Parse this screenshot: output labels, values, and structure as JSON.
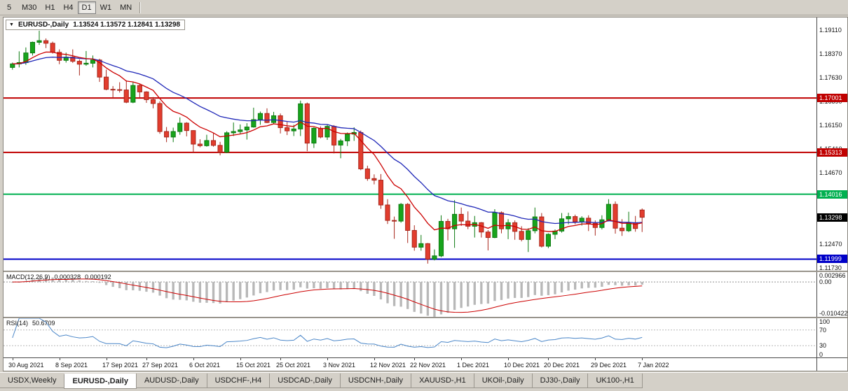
{
  "toolbar": {
    "timeframes": [
      {
        "label": "5",
        "active": false
      },
      {
        "label": "M30",
        "active": false
      },
      {
        "label": "H1",
        "active": false
      },
      {
        "label": "H4",
        "active": false
      },
      {
        "label": "D1",
        "active": true
      },
      {
        "label": "W1",
        "active": false
      },
      {
        "label": "MN",
        "active": false
      }
    ]
  },
  "chart": {
    "symbol_period": "EURUSD-,Daily",
    "ohlc_text": "1.13524 1.13572 1.12841 1.13298"
  },
  "chart_data": {
    "type": "candlestick",
    "symbol": "EURUSD-",
    "timeframe": "Daily",
    "colors": {
      "up": "#18a41c",
      "up_border": "#0c7a10",
      "down": "#e23d2e",
      "down_border": "#a8271c",
      "histogram": "#b8b8b8",
      "macd_signal": "#cc0000",
      "rsi_line": "#4a86c8",
      "level_dotted": "#b8b8b8",
      "zero_dotted": "#909090"
    },
    "price_axis": {
      "max": 1.195,
      "min": 1.1164,
      "labels": [
        "1.19110",
        "1.18370",
        "1.17630",
        "1.16890",
        "1.16150",
        "1.15410",
        "1.14670",
        "1.12470",
        "1.11730"
      ]
    },
    "hlines": [
      {
        "value": 1.17001,
        "label": "1.17001",
        "color": "#c00000"
      },
      {
        "value": 1.15313,
        "label": "1.15313",
        "color": "#c00000"
      },
      {
        "value": 1.14016,
        "label": "1.14016",
        "color": "#00b050"
      },
      {
        "value": 1.11999,
        "label": "1.11999",
        "color": "#0000c8"
      }
    ],
    "last_price": {
      "value": 1.13298,
      "label": "1.13298",
      "color": "#000000"
    },
    "ma": [
      {
        "type": "ema",
        "period": 21,
        "color": "#2028b8"
      },
      {
        "type": "ema",
        "period": 9,
        "color": "#cc0000"
      }
    ],
    "macd": {
      "label": "MACD(12,26,9)",
      "value_main": "0.000328",
      "value_signal": "0.000192",
      "fast": 12,
      "slow": 26,
      "signal_period": 9,
      "axis": {
        "max": 0.002966,
        "min": -0.010422,
        "labels": [
          {
            "text": "0.002966",
            "value": 0.002966
          },
          {
            "text": "0.00",
            "value": 0
          },
          {
            "text": "-0.010422",
            "value": -0.010422
          }
        ]
      }
    },
    "rsi": {
      "label": "RSI(14)",
      "value": "50.6709",
      "period": 14,
      "levels": [
        70,
        30
      ],
      "axis": {
        "max": 100,
        "min": 0,
        "labels": [
          {
            "text": "100",
            "value": 100
          },
          {
            "text": "70",
            "value": 70
          },
          {
            "text": "30",
            "value": 30
          },
          {
            "text": "0",
            "value": 0
          }
        ]
      }
    },
    "date_ticks": [
      {
        "i": 0,
        "label": "30 Aug 2021"
      },
      {
        "i": 7,
        "label": "8 Sep 2021"
      },
      {
        "i": 14,
        "label": "17 Sep 2021"
      },
      {
        "i": 20,
        "label": "27 Sep 2021"
      },
      {
        "i": 27,
        "label": "6 Oct 2021"
      },
      {
        "i": 34,
        "label": "15 Oct 2021"
      },
      {
        "i": 40,
        "label": "25 Oct 2021"
      },
      {
        "i": 47,
        "label": "3 Nov 2021"
      },
      {
        "i": 54,
        "label": "12 Nov 2021"
      },
      {
        "i": 60,
        "label": "22 Nov 2021"
      },
      {
        "i": 67,
        "label": "1 Dec 2021"
      },
      {
        "i": 74,
        "label": "10 Dec 2021"
      },
      {
        "i": 80,
        "label": "20 Dec 2021"
      },
      {
        "i": 87,
        "label": "29 Dec 2021"
      },
      {
        "i": 94,
        "label": "7 Jan 2022"
      }
    ],
    "ohlc": [
      [
        1.1795,
        1.181,
        1.1788,
        1.1806
      ],
      [
        1.1806,
        1.1845,
        1.1795,
        1.181
      ],
      [
        1.181,
        1.1857,
        1.1803,
        1.184
      ],
      [
        1.184,
        1.1875,
        1.1832,
        1.1873
      ],
      [
        1.1873,
        1.1909,
        1.1865,
        1.1878
      ],
      [
        1.1878,
        1.1885,
        1.1855,
        1.187
      ],
      [
        1.187,
        1.1875,
        1.1838,
        1.1842
      ],
      [
        1.1842,
        1.1851,
        1.1805,
        1.1817
      ],
      [
        1.1817,
        1.1841,
        1.181,
        1.1827
      ],
      [
        1.1827,
        1.1851,
        1.1809,
        1.1814
      ],
      [
        1.1814,
        1.182,
        1.177,
        1.1805
      ],
      [
        1.1805,
        1.1846,
        1.18,
        1.1808
      ],
      [
        1.1808,
        1.1832,
        1.1795,
        1.1818
      ],
      [
        1.1818,
        1.1822,
        1.175,
        1.1765
      ],
      [
        1.1765,
        1.1788,
        1.1724,
        1.1727
      ],
      [
        1.1727,
        1.1737,
        1.17,
        1.1726
      ],
      [
        1.1726,
        1.1749,
        1.1717,
        1.1725
      ],
      [
        1.1725,
        1.1755,
        1.1684,
        1.1687
      ],
      [
        1.1687,
        1.175,
        1.1684,
        1.1739
      ],
      [
        1.1739,
        1.1745,
        1.1701,
        1.1719
      ],
      [
        1.1719,
        1.1721,
        1.1685,
        1.1695
      ],
      [
        1.1695,
        1.1703,
        1.1668,
        1.1683
      ],
      [
        1.1683,
        1.169,
        1.1589,
        1.1596
      ],
      [
        1.1596,
        1.161,
        1.1563,
        1.1579
      ],
      [
        1.1579,
        1.1608,
        1.1563,
        1.1596
      ],
      [
        1.1596,
        1.164,
        1.1586,
        1.1622
      ],
      [
        1.1622,
        1.1625,
        1.1581,
        1.1599
      ],
      [
        1.1599,
        1.16,
        1.1529,
        1.1557
      ],
      [
        1.1557,
        1.1572,
        1.1547,
        1.1552
      ],
      [
        1.1552,
        1.1586,
        1.1549,
        1.1568
      ],
      [
        1.1568,
        1.1591,
        1.1549,
        1.1553
      ],
      [
        1.1553,
        1.1564,
        1.1522,
        1.1532
      ],
      [
        1.1532,
        1.1597,
        1.1529,
        1.1592
      ],
      [
        1.1592,
        1.1624,
        1.1582,
        1.1596
      ],
      [
        1.1596,
        1.1618,
        1.1588,
        1.1601
      ],
      [
        1.1601,
        1.1622,
        1.1571,
        1.161
      ],
      [
        1.161,
        1.167,
        1.1608,
        1.1633
      ],
      [
        1.1633,
        1.1658,
        1.1617,
        1.1652
      ],
      [
        1.1652,
        1.1668,
        1.1622,
        1.1624
      ],
      [
        1.1624,
        1.1657,
        1.162,
        1.1645
      ],
      [
        1.1645,
        1.1652,
        1.159,
        1.1608
      ],
      [
        1.1608,
        1.1626,
        1.1585,
        1.1598
      ],
      [
        1.1598,
        1.1617,
        1.1582,
        1.1604
      ],
      [
        1.1604,
        1.1692,
        1.1582,
        1.1682
      ],
      [
        1.1682,
        1.1686,
        1.1535,
        1.156
      ],
      [
        1.156,
        1.1609,
        1.1545,
        1.1606
      ],
      [
        1.1606,
        1.1612,
        1.1575,
        1.1579
      ],
      [
        1.1579,
        1.1617,
        1.157,
        1.1612
      ],
      [
        1.1612,
        1.1616,
        1.1528,
        1.1554
      ],
      [
        1.1554,
        1.1573,
        1.1513,
        1.1567
      ],
      [
        1.1567,
        1.1593,
        1.1551,
        1.1588
      ],
      [
        1.1588,
        1.1609,
        1.1567,
        1.1593
      ],
      [
        1.1593,
        1.1599,
        1.1476,
        1.148
      ],
      [
        1.148,
        1.149,
        1.1443,
        1.145
      ],
      [
        1.145,
        1.1463,
        1.1432,
        1.1445
      ],
      [
        1.1445,
        1.1464,
        1.1356,
        1.1368
      ],
      [
        1.1368,
        1.1386,
        1.1309,
        1.132
      ],
      [
        1.132,
        1.1332,
        1.1263,
        1.1318
      ],
      [
        1.1318,
        1.1374,
        1.1313,
        1.137
      ],
      [
        1.137,
        1.1374,
        1.125,
        1.1289
      ],
      [
        1.1289,
        1.1305,
        1.1226,
        1.1237
      ],
      [
        1.1237,
        1.1275,
        1.1226,
        1.1248
      ],
      [
        1.1248,
        1.125,
        1.1186,
        1.12
      ],
      [
        1.12,
        1.123,
        1.1196,
        1.121
      ],
      [
        1.121,
        1.1336,
        1.1206,
        1.1317
      ],
      [
        1.1317,
        1.1325,
        1.1258,
        1.1294
      ],
      [
        1.1294,
        1.1383,
        1.1235,
        1.1339
      ],
      [
        1.1339,
        1.136,
        1.1303,
        1.1318
      ],
      [
        1.1318,
        1.1348,
        1.1293,
        1.1302
      ],
      [
        1.1302,
        1.1334,
        1.1267,
        1.1313
      ],
      [
        1.1313,
        1.1315,
        1.1267,
        1.1284
      ],
      [
        1.1284,
        1.129,
        1.1227,
        1.1267
      ],
      [
        1.1267,
        1.1355,
        1.1265,
        1.1344
      ],
      [
        1.1344,
        1.1348,
        1.128,
        1.1294
      ],
      [
        1.1294,
        1.1324,
        1.1262,
        1.1313
      ],
      [
        1.1313,
        1.132,
        1.126,
        1.1286
      ],
      [
        1.1286,
        1.1302,
        1.1255,
        1.1261
      ],
      [
        1.1261,
        1.1296,
        1.1222,
        1.1288
      ],
      [
        1.1288,
        1.136,
        1.128,
        1.1331
      ],
      [
        1.1331,
        1.1343,
        1.1236,
        1.124
      ],
      [
        1.124,
        1.128,
        1.1234,
        1.1277
      ],
      [
        1.1277,
        1.1292,
        1.1262,
        1.1287
      ],
      [
        1.1287,
        1.1343,
        1.1282,
        1.1325
      ],
      [
        1.1325,
        1.1344,
        1.1308,
        1.1332
      ],
      [
        1.1332,
        1.1338,
        1.1308,
        1.1316
      ],
      [
        1.1316,
        1.1333,
        1.1304,
        1.1327
      ],
      [
        1.1327,
        1.1336,
        1.1287,
        1.1311
      ],
      [
        1.1311,
        1.132,
        1.1273,
        1.1298
      ],
      [
        1.1298,
        1.1336,
        1.1292,
        1.1322
      ],
      [
        1.1322,
        1.1386,
        1.1317,
        1.137
      ],
      [
        1.137,
        1.1379,
        1.1279,
        1.1296
      ],
      [
        1.1296,
        1.1324,
        1.1272,
        1.1288
      ],
      [
        1.1288,
        1.1347,
        1.1284,
        1.1313
      ],
      [
        1.1313,
        1.1334,
        1.1285,
        1.1295
      ],
      [
        1.13524,
        1.13572,
        1.12841,
        1.13298
      ]
    ]
  },
  "tabs": {
    "items": [
      {
        "label": "USDX,Weekly",
        "active": false
      },
      {
        "label": "EURUSD-,Daily",
        "active": true
      },
      {
        "label": "AUDUSD-,Daily",
        "active": false
      },
      {
        "label": "USDCHF-,H4",
        "active": false
      },
      {
        "label": "USDCAD-,Daily",
        "active": false
      },
      {
        "label": "USDCNH-,Daily",
        "active": false
      },
      {
        "label": "XAUUSD-,H1",
        "active": false
      },
      {
        "label": "UKOil-,Daily",
        "active": false
      },
      {
        "label": "DJ30-,Daily",
        "active": false
      },
      {
        "label": "UK100-,H1",
        "active": false
      }
    ]
  }
}
